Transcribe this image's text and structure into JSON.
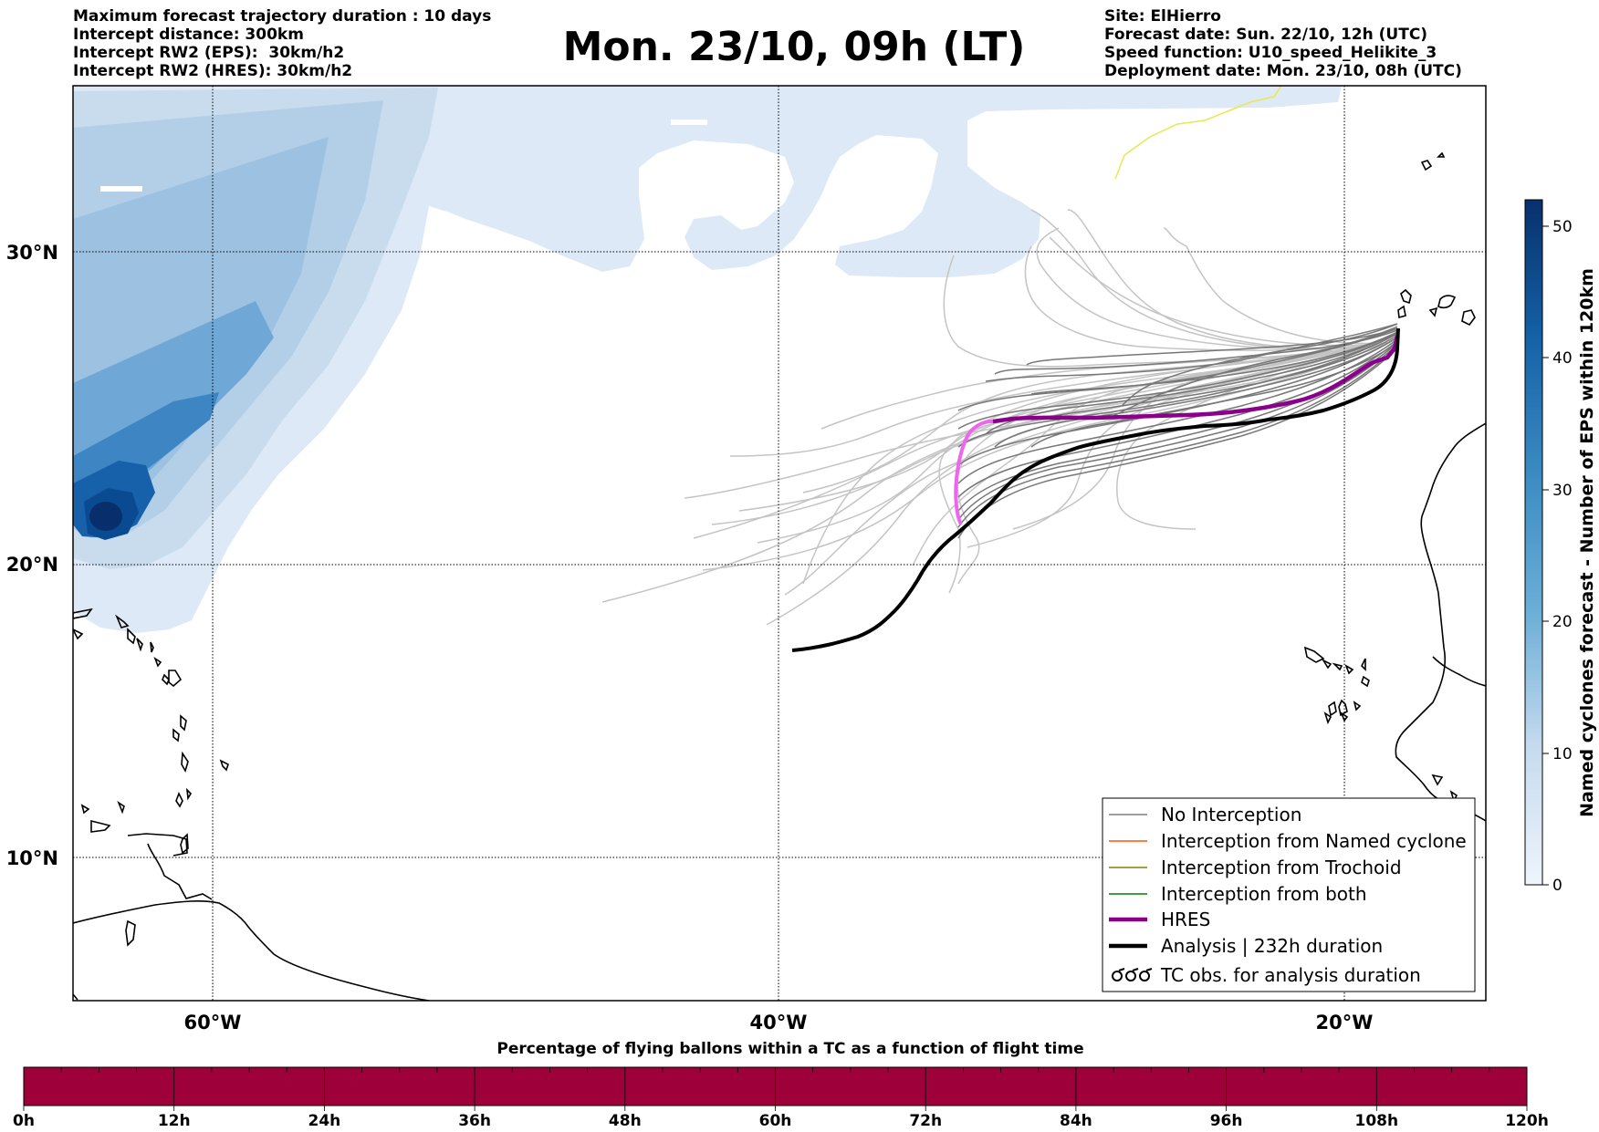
{
  "header": {
    "left_lines": [
      "Maximum forecast trajectory duration : 10 days",
      "Intercept distance: 300km",
      "Intercept RW2 (EPS):  30km/h2",
      "Intercept RW2 (HRES): 30km/h2"
    ],
    "right_lines": [
      "Site: ElHierro",
      "Forecast date: Sun. 22/10, 12h (UTC)",
      "Speed function: U10_speed_Helikite_3",
      "Deployment date: Mon. 23/10, 08h (UTC)"
    ],
    "title": "Mon. 23/10, 09h (LT)"
  },
  "map": {
    "lat_labels": [
      "30°N",
      "20°N",
      "10°N"
    ],
    "lon_labels": [
      "60°W",
      "40°W",
      "20°W"
    ],
    "grid": true,
    "colors": {
      "cyclone_density_low": "#dde9f6",
      "cyclone_density_high": "#08306b",
      "no_interception": "#7f7f7f",
      "named_cyclone": "#ff5500",
      "trochoid": "#808000",
      "both": "#008000",
      "hres": "#8b008b",
      "hres_pre": "#ee66ee",
      "analysis": "#000000"
    }
  },
  "legend": {
    "items": [
      {
        "label": "No Interception",
        "style": "thin",
        "color": "#7f7f7f"
      },
      {
        "label": "Interception from Named cyclone",
        "style": "thin",
        "color": "#ff5500"
      },
      {
        "label": "Interception from Trochoid",
        "style": "thin",
        "color": "#808000"
      },
      {
        "label": "Interception from both",
        "style": "thin",
        "color": "#008000"
      },
      {
        "label": "HRES",
        "style": "thick",
        "color": "#8b008b"
      },
      {
        "label": "Analysis | 232h duration",
        "style": "thick",
        "color": "#000000"
      },
      {
        "label": "TC obs. for analysis duration",
        "style": "symbol",
        "color": "#000000"
      }
    ]
  },
  "colorbar": {
    "label": "Named cyclones forecast - Number of EPS within 120km",
    "min": 0,
    "max": 52,
    "ticks": [
      "0",
      "10",
      "20",
      "30",
      "40",
      "50"
    ]
  },
  "bottom_bar": {
    "title": "Percentage of flying ballons within a TC as a function of flight time",
    "color": "#9e003a",
    "ticks": [
      "0h",
      "12h",
      "24h",
      "36h",
      "48h",
      "60h",
      "72h",
      "84h",
      "96h",
      "108h",
      "120h"
    ]
  }
}
